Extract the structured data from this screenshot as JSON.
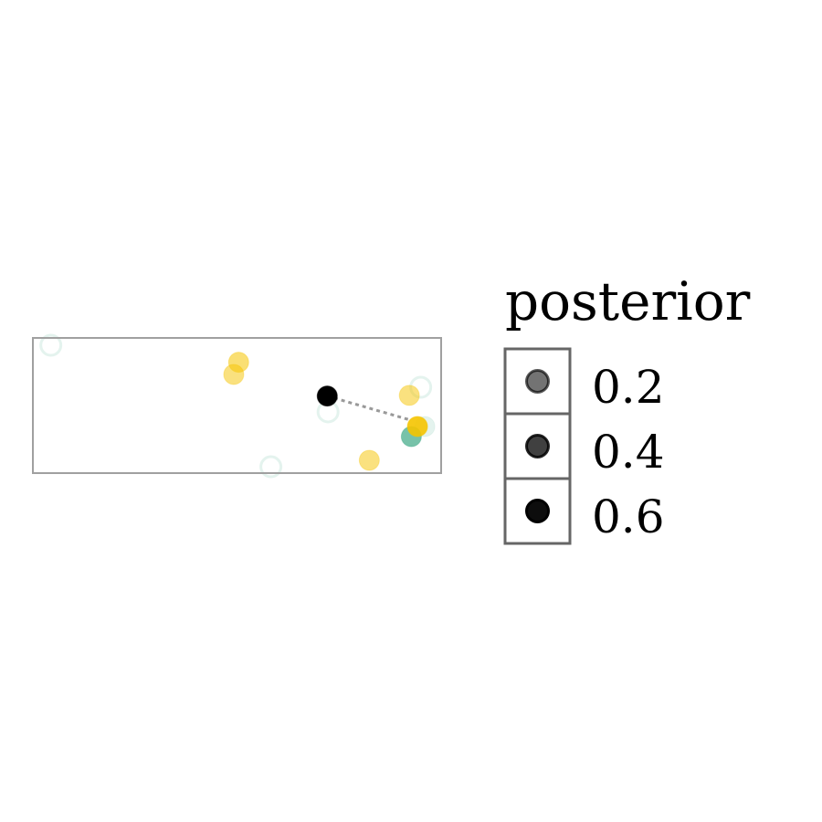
{
  "colors": {
    "green": "#4aae8c",
    "yellow": "#f5c400",
    "link": "#999999",
    "panel_border": "#a0a0a0",
    "legend_border": "#666666"
  },
  "chart_data": {
    "type": "scatter",
    "title": "",
    "xlabel": "",
    "ylabel": "",
    "xlim": [
      0,
      1
    ],
    "ylim": [
      0,
      1
    ],
    "grid": false,
    "legend": {
      "title": "posterior",
      "placement": "right",
      "entries": [
        {
          "label": "0.2",
          "value": 0.2
        },
        {
          "label": "0.4",
          "value": 0.4
        },
        {
          "label": "0.6",
          "value": 0.6
        }
      ]
    },
    "series": [
      {
        "color": "green",
        "points": [
          {
            "x": 0.044,
            "y": 0.946,
            "posterior": 0.06,
            "style": "ring"
          },
          {
            "x": 0.723,
            "y": 0.453,
            "posterior": 0.08,
            "style": "ring"
          },
          {
            "x": 0.583,
            "y": 0.047,
            "posterior": 0.06,
            "style": "ring"
          },
          {
            "x": 0.95,
            "y": 0.635,
            "posterior": 0.08,
            "style": "ring"
          },
          {
            "x": 0.96,
            "y": 0.345,
            "posterior": 0.15,
            "style": "filled"
          },
          {
            "x": 0.927,
            "y": 0.27,
            "posterior": 0.75,
            "style": "filled"
          }
        ]
      },
      {
        "color": "yellow",
        "points": [
          {
            "x": 0.504,
            "y": 0.82,
            "posterior": 0.55,
            "style": "filled"
          },
          {
            "x": 0.492,
            "y": 0.73,
            "posterior": 0.5,
            "style": "filled"
          },
          {
            "x": 0.922,
            "y": 0.575,
            "posterior": 0.5,
            "style": "filled"
          },
          {
            "x": 0.824,
            "y": 0.095,
            "posterior": 0.5,
            "style": "filled"
          },
          {
            "x": 0.942,
            "y": 0.345,
            "posterior": 0.9,
            "style": "filled"
          }
        ]
      },
      {
        "color": "black",
        "points": [
          {
            "x": 0.721,
            "y": 0.57,
            "posterior": 1.0,
            "style": "filled"
          }
        ]
      }
    ],
    "links": [
      {
        "from": [
          0.721,
          0.57
        ],
        "to": [
          0.922,
          0.395
        ],
        "style": "dotted"
      }
    ]
  }
}
